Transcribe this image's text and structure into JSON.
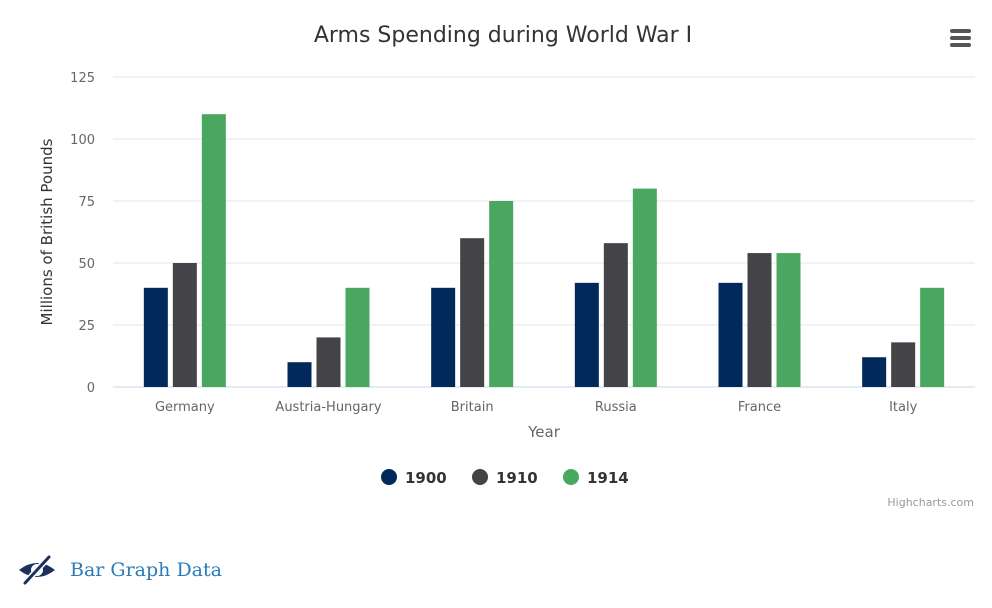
{
  "chart_data": {
    "type": "bar",
    "title": "Arms Spending during World War I",
    "xlabel": "Year",
    "ylabel": "Millions of British Pounds",
    "ylim": [
      0,
      125
    ],
    "yticks": [
      0,
      25,
      50,
      75,
      100,
      125
    ],
    "grid": true,
    "legend_position": "bottom-center",
    "categories": [
      "Germany",
      "Austria-Hungary",
      "Britain",
      "Russia",
      "France",
      "Italy"
    ],
    "series": [
      {
        "name": "1900",
        "color": "#012a5b",
        "values": [
          40,
          10,
          40,
          42,
          42,
          12
        ]
      },
      {
        "name": "1910",
        "color": "#434348",
        "values": [
          50,
          20,
          60,
          58,
          54,
          18
        ]
      },
      {
        "name": "1914",
        "color": "#49a75f",
        "values": [
          110,
          40,
          75,
          80,
          54,
          40
        ]
      }
    ]
  },
  "credits": "Highcharts.com",
  "menu_icon": "hamburger-icon",
  "toggle": {
    "label": "Bar Graph Data",
    "icon": "eye-slash-icon",
    "icon_color": "#1c2f5e"
  }
}
